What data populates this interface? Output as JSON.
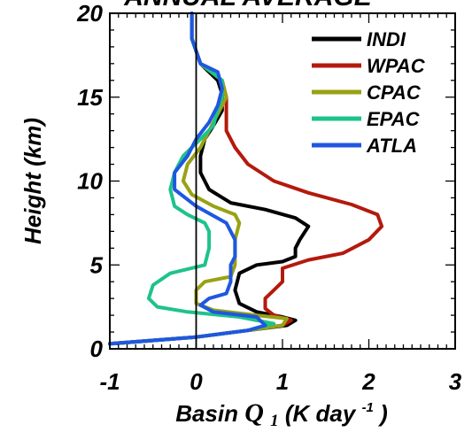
{
  "top_partial_text": "ANNUAL AVERAGE",
  "chart_data": {
    "type": "line",
    "title": "",
    "xlabel": {
      "prefix": "Basin ",
      "symbol": "Q",
      "subscript": "1",
      "units_start": " (K day",
      "units_sup": "-1",
      "units_end": ")"
    },
    "ylabel": "Height (km)",
    "xlim": [
      -1,
      3
    ],
    "ylim": [
      0,
      20
    ],
    "xticks": [
      "-1",
      "0",
      "1",
      "2",
      "3"
    ],
    "xtick_values": [
      -1,
      0,
      1,
      2,
      3
    ],
    "yticks": [
      "0",
      "5",
      "10",
      "15",
      "20"
    ],
    "ytick_values": [
      0,
      5,
      10,
      15,
      20
    ],
    "zero_line": 0,
    "grid": false,
    "legend_position": "top-right",
    "series": [
      {
        "name": "INDI",
        "color": "#000000",
        "points": [
          [
            -1,
            0.3
          ],
          [
            0,
            0.7
          ],
          [
            0.6,
            1.1
          ],
          [
            1.05,
            1.4
          ],
          [
            1.15,
            1.7
          ],
          [
            1.0,
            1.9
          ],
          [
            0.7,
            2.2
          ],
          [
            0.5,
            2.7
          ],
          [
            0.45,
            3.5
          ],
          [
            0.5,
            4.5
          ],
          [
            0.7,
            5.0
          ],
          [
            1.0,
            5.2
          ],
          [
            1.15,
            5.5
          ],
          [
            1.15,
            6.0
          ],
          [
            1.2,
            6.5
          ],
          [
            1.3,
            7.3
          ],
          [
            1.15,
            7.8
          ],
          [
            0.8,
            8.3
          ],
          [
            0.4,
            8.7
          ],
          [
            0.15,
            9.5
          ],
          [
            0.05,
            10.5
          ],
          [
            0.05,
            11.5
          ],
          [
            0.1,
            12.5
          ],
          [
            0.2,
            13.3
          ],
          [
            0.3,
            14.2
          ],
          [
            0.3,
            15.2
          ],
          [
            0.25,
            16
          ],
          [
            0.05,
            17
          ],
          [
            -0.05,
            18.5
          ],
          [
            -0.05,
            19.5
          ],
          [
            -0.05,
            20
          ]
        ]
      },
      {
        "name": "WPAC",
        "color": "#b31a0c",
        "points": [
          [
            -1,
            0.3
          ],
          [
            0,
            0.7
          ],
          [
            0.6,
            1.1
          ],
          [
            1.0,
            1.4
          ],
          [
            1.1,
            1.7
          ],
          [
            0.9,
            2.0
          ],
          [
            0.8,
            2.4
          ],
          [
            0.8,
            3.0
          ],
          [
            0.9,
            3.5
          ],
          [
            1.0,
            4.0
          ],
          [
            1.0,
            4.8
          ],
          [
            1.3,
            5.3
          ],
          [
            1.7,
            5.7
          ],
          [
            2.0,
            6.5
          ],
          [
            2.15,
            7.3
          ],
          [
            2.1,
            8.0
          ],
          [
            1.8,
            8.6
          ],
          [
            1.3,
            9.3
          ],
          [
            0.9,
            10.0
          ],
          [
            0.6,
            11.0
          ],
          [
            0.45,
            12.0
          ],
          [
            0.35,
            13.0
          ],
          [
            0.35,
            14.0
          ],
          [
            0.35,
            15.0
          ],
          [
            0.3,
            16.0
          ],
          [
            0.05,
            17
          ],
          [
            -0.05,
            18.5
          ],
          [
            -0.05,
            20
          ]
        ]
      },
      {
        "name": "CPAC",
        "color": "#98a214",
        "points": [
          [
            -1,
            0.3
          ],
          [
            0,
            0.7
          ],
          [
            0.6,
            1.1
          ],
          [
            1.0,
            1.4
          ],
          [
            1.05,
            1.8
          ],
          [
            0.7,
            2.0
          ],
          [
            0.2,
            2.3
          ],
          [
            0,
            2.7
          ],
          [
            0,
            3.5
          ],
          [
            0.1,
            4.0
          ],
          [
            0.4,
            4.3
          ],
          [
            0.45,
            5.0
          ],
          [
            0.45,
            6.0
          ],
          [
            0.45,
            6.5
          ],
          [
            0.5,
            7.5
          ],
          [
            0.45,
            8.0
          ],
          [
            0.2,
            8.5
          ],
          [
            -0.05,
            9.2
          ],
          [
            -0.15,
            10.0
          ],
          [
            -0.1,
            11.0
          ],
          [
            0.05,
            12.0
          ],
          [
            0.15,
            13.0
          ],
          [
            0.25,
            14.0
          ],
          [
            0.35,
            15.0
          ],
          [
            0.3,
            16.0
          ],
          [
            0.05,
            17
          ],
          [
            -0.05,
            18.5
          ],
          [
            -0.05,
            20
          ]
        ]
      },
      {
        "name": "EPAC",
        "color": "#1ec38a",
        "points": [
          [
            -1,
            0.3
          ],
          [
            0,
            0.7
          ],
          [
            0.6,
            1.1
          ],
          [
            0.9,
            1.5
          ],
          [
            0.5,
            1.9
          ],
          [
            -0.1,
            2.2
          ],
          [
            -0.45,
            2.5
          ],
          [
            -0.55,
            3.0
          ],
          [
            -0.5,
            3.8
          ],
          [
            -0.3,
            4.5
          ],
          [
            0.1,
            5.0
          ],
          [
            0.15,
            6.0
          ],
          [
            0.15,
            7.0
          ],
          [
            0.1,
            7.5
          ],
          [
            -0.1,
            8.0
          ],
          [
            -0.25,
            8.5
          ],
          [
            -0.3,
            9.5
          ],
          [
            -0.25,
            10.5
          ],
          [
            -0.15,
            11.5
          ],
          [
            0.05,
            12.5
          ],
          [
            0.2,
            13.3
          ],
          [
            0.25,
            14.3
          ],
          [
            0.3,
            15.0
          ],
          [
            0.3,
            16.0
          ],
          [
            0.05,
            17
          ],
          [
            -0.05,
            18.5
          ],
          [
            -0.05,
            20
          ]
        ]
      },
      {
        "name": "ATLA",
        "color": "#1f57e0",
        "points": [
          [
            -1,
            0.3
          ],
          [
            0,
            0.7
          ],
          [
            0.6,
            1.1
          ],
          [
            0.8,
            1.4
          ],
          [
            0.7,
            1.9
          ],
          [
            0.2,
            2.2
          ],
          [
            0.05,
            2.6
          ],
          [
            0.15,
            3.0
          ],
          [
            0.35,
            3.3
          ],
          [
            0.4,
            4.0
          ],
          [
            0.4,
            5.0
          ],
          [
            0.45,
            5.5
          ],
          [
            0.45,
            6.5
          ],
          [
            0.35,
            7.5
          ],
          [
            0,
            8.5
          ],
          [
            -0.25,
            9.5
          ],
          [
            -0.25,
            10.5
          ],
          [
            -0.1,
            11.5
          ],
          [
            0,
            12.5
          ],
          [
            0.15,
            13.5
          ],
          [
            0.25,
            14.5
          ],
          [
            0.3,
            15.5
          ],
          [
            0.25,
            16.5
          ],
          [
            0.05,
            17
          ],
          [
            -0.05,
            18.5
          ],
          [
            -0.05,
            20
          ]
        ]
      }
    ]
  }
}
